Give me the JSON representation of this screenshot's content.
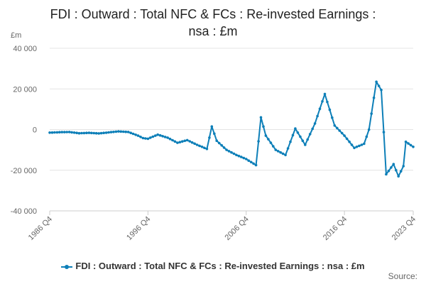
{
  "chart_data": {
    "type": "line",
    "title_line1": "FDI : Outward : Total NFC & FCs : Re-invested Earnings :",
    "title_line2": "nsa : £m",
    "unit_label": "£m",
    "xlabel": "",
    "ylabel": "",
    "ylim": [
      -40000,
      40000
    ],
    "y_ticks": [
      {
        "value": 40000,
        "label": "40 000"
      },
      {
        "value": 20000,
        "label": "20 000"
      },
      {
        "value": 0,
        "label": "0"
      },
      {
        "value": -20000,
        "label": "-20 000"
      },
      {
        "value": -40000,
        "label": "-40 000"
      }
    ],
    "x_range": [
      "1986 Q4",
      "2023 Q4"
    ],
    "x_ticks": [
      "1986 Q4",
      "1996 Q4",
      "2006 Q4",
      "2016 Q4",
      "2023 Q4"
    ],
    "grid": "horizontal",
    "legend_position": "bottom",
    "series": [
      {
        "name": "FDI : Outward : Total NFC & FCs : Re-invested Earnings : nsa : £m",
        "color": "#0d7fb8",
        "anchors": [
          {
            "x": "1986 Q4",
            "y": -1500
          },
          {
            "x": "1987 Q4",
            "y": -1300
          },
          {
            "x": "1988 Q4",
            "y": -1200
          },
          {
            "x": "1989 Q4",
            "y": -1800
          },
          {
            "x": "1990 Q4",
            "y": -1600
          },
          {
            "x": "1991 Q4",
            "y": -1900
          },
          {
            "x": "1992 Q4",
            "y": -1400
          },
          {
            "x": "1993 Q4",
            "y": -900
          },
          {
            "x": "1994 Q4",
            "y": -1200
          },
          {
            "x": "1995 Q4",
            "y": -3000
          },
          {
            "x": "1996 Q2",
            "y": -4200
          },
          {
            "x": "1996 Q4",
            "y": -4500
          },
          {
            "x": "1997 Q4",
            "y": -2500
          },
          {
            "x": "1998 Q4",
            "y": -4000
          },
          {
            "x": "1999 Q4",
            "y": -6500
          },
          {
            "x": "2000 Q4",
            "y": -5200
          },
          {
            "x": "2001 Q4",
            "y": -7500
          },
          {
            "x": "2002 Q4",
            "y": -9500
          },
          {
            "x": "2003 Q2",
            "y": 1500
          },
          {
            "x": "2003 Q4",
            "y": -5500
          },
          {
            "x": "2004 Q4",
            "y": -10000
          },
          {
            "x": "2005 Q4",
            "y": -12500
          },
          {
            "x": "2006 Q4",
            "y": -14500
          },
          {
            "x": "2007 Q4",
            "y": -17500
          },
          {
            "x": "2008 Q2",
            "y": 6000
          },
          {
            "x": "2008 Q4",
            "y": -3000
          },
          {
            "x": "2009 Q4",
            "y": -10000
          },
          {
            "x": "2010 Q4",
            "y": -12500
          },
          {
            "x": "2011 Q4",
            "y": 500
          },
          {
            "x": "2012 Q4",
            "y": -7500
          },
          {
            "x": "2013 Q4",
            "y": 3000
          },
          {
            "x": "2014 Q4",
            "y": 17500
          },
          {
            "x": "2015 Q4",
            "y": 2000
          },
          {
            "x": "2016 Q4",
            "y": -3000
          },
          {
            "x": "2017 Q4",
            "y": -9000
          },
          {
            "x": "2018 Q4",
            "y": -7000
          },
          {
            "x": "2019 Q2",
            "y": 0
          },
          {
            "x": "2020 Q1",
            "y": 23500
          },
          {
            "x": "2020 Q3",
            "y": 19500
          },
          {
            "x": "2021 Q1",
            "y": -22000
          },
          {
            "x": "2021 Q4",
            "y": -17000
          },
          {
            "x": "2022 Q2",
            "y": -23000
          },
          {
            "x": "2022 Q4",
            "y": -18000
          },
          {
            "x": "2023 Q1",
            "y": -6000
          },
          {
            "x": "2023 Q4",
            "y": -8500
          }
        ]
      }
    ],
    "source": "Source:"
  }
}
